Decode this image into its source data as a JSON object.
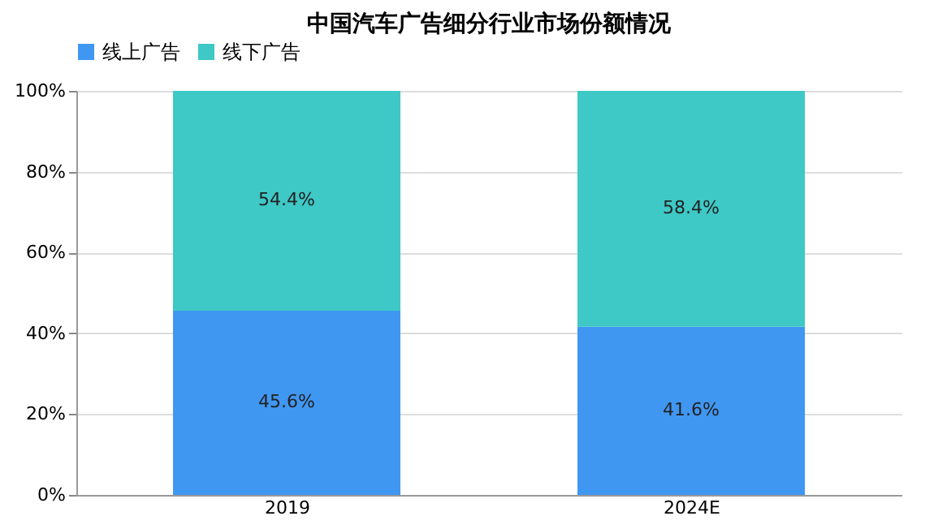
{
  "chart_data": {
    "type": "bar",
    "title": "中国汽车广告细分行业市场份额情况",
    "categories": [
      "2019",
      "2024E"
    ],
    "series": [
      {
        "name": "线上广告",
        "color": "#4097f2",
        "values": [
          45.6,
          41.6
        ],
        "value_labels": [
          "45.6%",
          "41.6%"
        ]
      },
      {
        "name": "线下广告",
        "color": "#3ec8c6",
        "values": [
          54.4,
          58.4
        ],
        "value_labels": [
          "54.4%",
          "58.4%"
        ]
      }
    ],
    "stacked": true,
    "ylim": [
      0,
      100
    ],
    "yticks": [
      {
        "value": 0,
        "label": "0%"
      },
      {
        "value": 20,
        "label": "20%"
      },
      {
        "value": 40,
        "label": "40%"
      },
      {
        "value": 60,
        "label": "60%"
      },
      {
        "value": 80,
        "label": "80%"
      },
      {
        "value": 100,
        "label": "100%"
      }
    ],
    "grid": "y",
    "legend": "top"
  }
}
